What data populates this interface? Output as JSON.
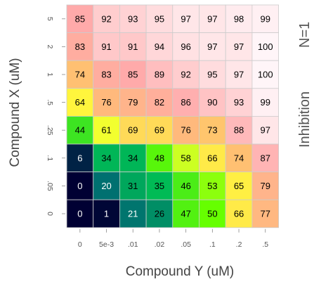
{
  "chart_data": {
    "type": "heatmap",
    "xlabel": "Compound Y (uM)",
    "ylabel": "Compound X (uM)",
    "side_label": "Inhibition",
    "n_label": "N=1",
    "x_ticks": [
      "0",
      "5e-3",
      ".01",
      ".02",
      ".05",
      ".1",
      ".2",
      ".5"
    ],
    "y_ticks_top_to_bottom": [
      "5",
      "2",
      "1",
      ".5",
      ".25",
      ".1",
      ".05",
      "0"
    ],
    "values_top_to_bottom": [
      [
        85,
        92,
        93,
        95,
        97,
        97,
        98,
        99
      ],
      [
        83,
        91,
        91,
        94,
        96,
        97,
        97,
        100
      ],
      [
        74,
        83,
        85,
        89,
        92,
        95,
        97,
        100
      ],
      [
        64,
        76,
        79,
        82,
        86,
        90,
        93,
        99
      ],
      [
        44,
        61,
        69,
        69,
        76,
        73,
        88,
        97
      ],
      [
        6,
        34,
        34,
        48,
        58,
        66,
        74,
        87
      ],
      [
        0,
        20,
        31,
        35,
        46,
        53,
        65,
        79
      ],
      [
        0,
        1,
        21,
        26,
        47,
        50,
        66,
        77
      ]
    ],
    "color_scale": {
      "stops": [
        {
          "value": 0,
          "color": "#000033"
        },
        {
          "value": 20,
          "color": "#007070"
        },
        {
          "value": 35,
          "color": "#00bb55"
        },
        {
          "value": 50,
          "color": "#66ff00"
        },
        {
          "value": 62,
          "color": "#ffff33"
        },
        {
          "value": 75,
          "color": "#ffbb77"
        },
        {
          "value": 85,
          "color": "#ffaaaa"
        },
        {
          "value": 100,
          "color": "#fff5f8"
        }
      ],
      "dark_text_threshold": 25
    }
  }
}
